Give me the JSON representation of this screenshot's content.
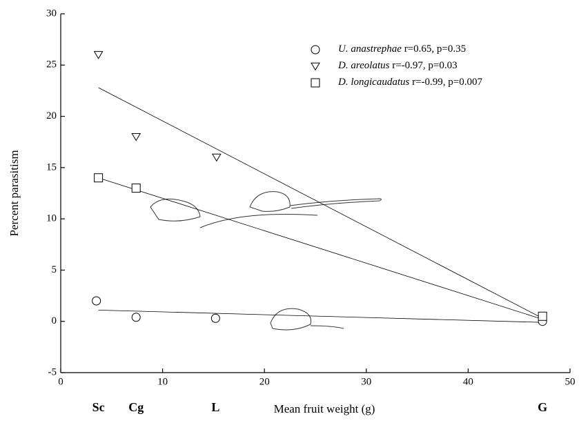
{
  "chart_data": {
    "type": "scatter",
    "xlabel": "Mean fruit weight (g)",
    "ylabel": "Percent parasitism",
    "xlim": [
      0,
      50
    ],
    "xticks": [
      0,
      10,
      20,
      30,
      40,
      50
    ],
    "ylim": [
      -5,
      30
    ],
    "yticks": [
      -5,
      0,
      5,
      10,
      15,
      20,
      25,
      30
    ],
    "x_annotations": [
      {
        "x": 3.7,
        "label": "Sc"
      },
      {
        "x": 7.4,
        "label": "Cg"
      },
      {
        "x": 15.2,
        "label": "L"
      },
      {
        "x": 47.3,
        "label": "G"
      }
    ],
    "legend": "upper right",
    "fit_x": [
      3.7,
      47.3
    ],
    "series": [
      {
        "name": "U. anastrephae",
        "stats": "r=0.65, p=0.35",
        "marker": "circle",
        "color": "#000000",
        "x": [
          3.5,
          7.4,
          15.2,
          47.3
        ],
        "y": [
          2,
          0.4,
          0.3,
          0
        ],
        "fit": [
          1.1,
          -0.1
        ]
      },
      {
        "name": "D. areolatus",
        "stats": "r=-0.97, p=0.03",
        "marker": "triangle-down",
        "color": "#000000",
        "x": [
          3.7,
          7.4,
          15.3
        ],
        "y": [
          26,
          18,
          16
        ],
        "fit": [
          22.8,
          0.3
        ]
      },
      {
        "name": "D. longicaudatus",
        "stats": "r=-0.99, p=0.007",
        "marker": "square",
        "color": "#000000",
        "x": [
          3.7,
          7.4,
          47.3
        ],
        "y": [
          14,
          13,
          0.5
        ],
        "fit": [
          14.0,
          0.2
        ]
      }
    ]
  }
}
